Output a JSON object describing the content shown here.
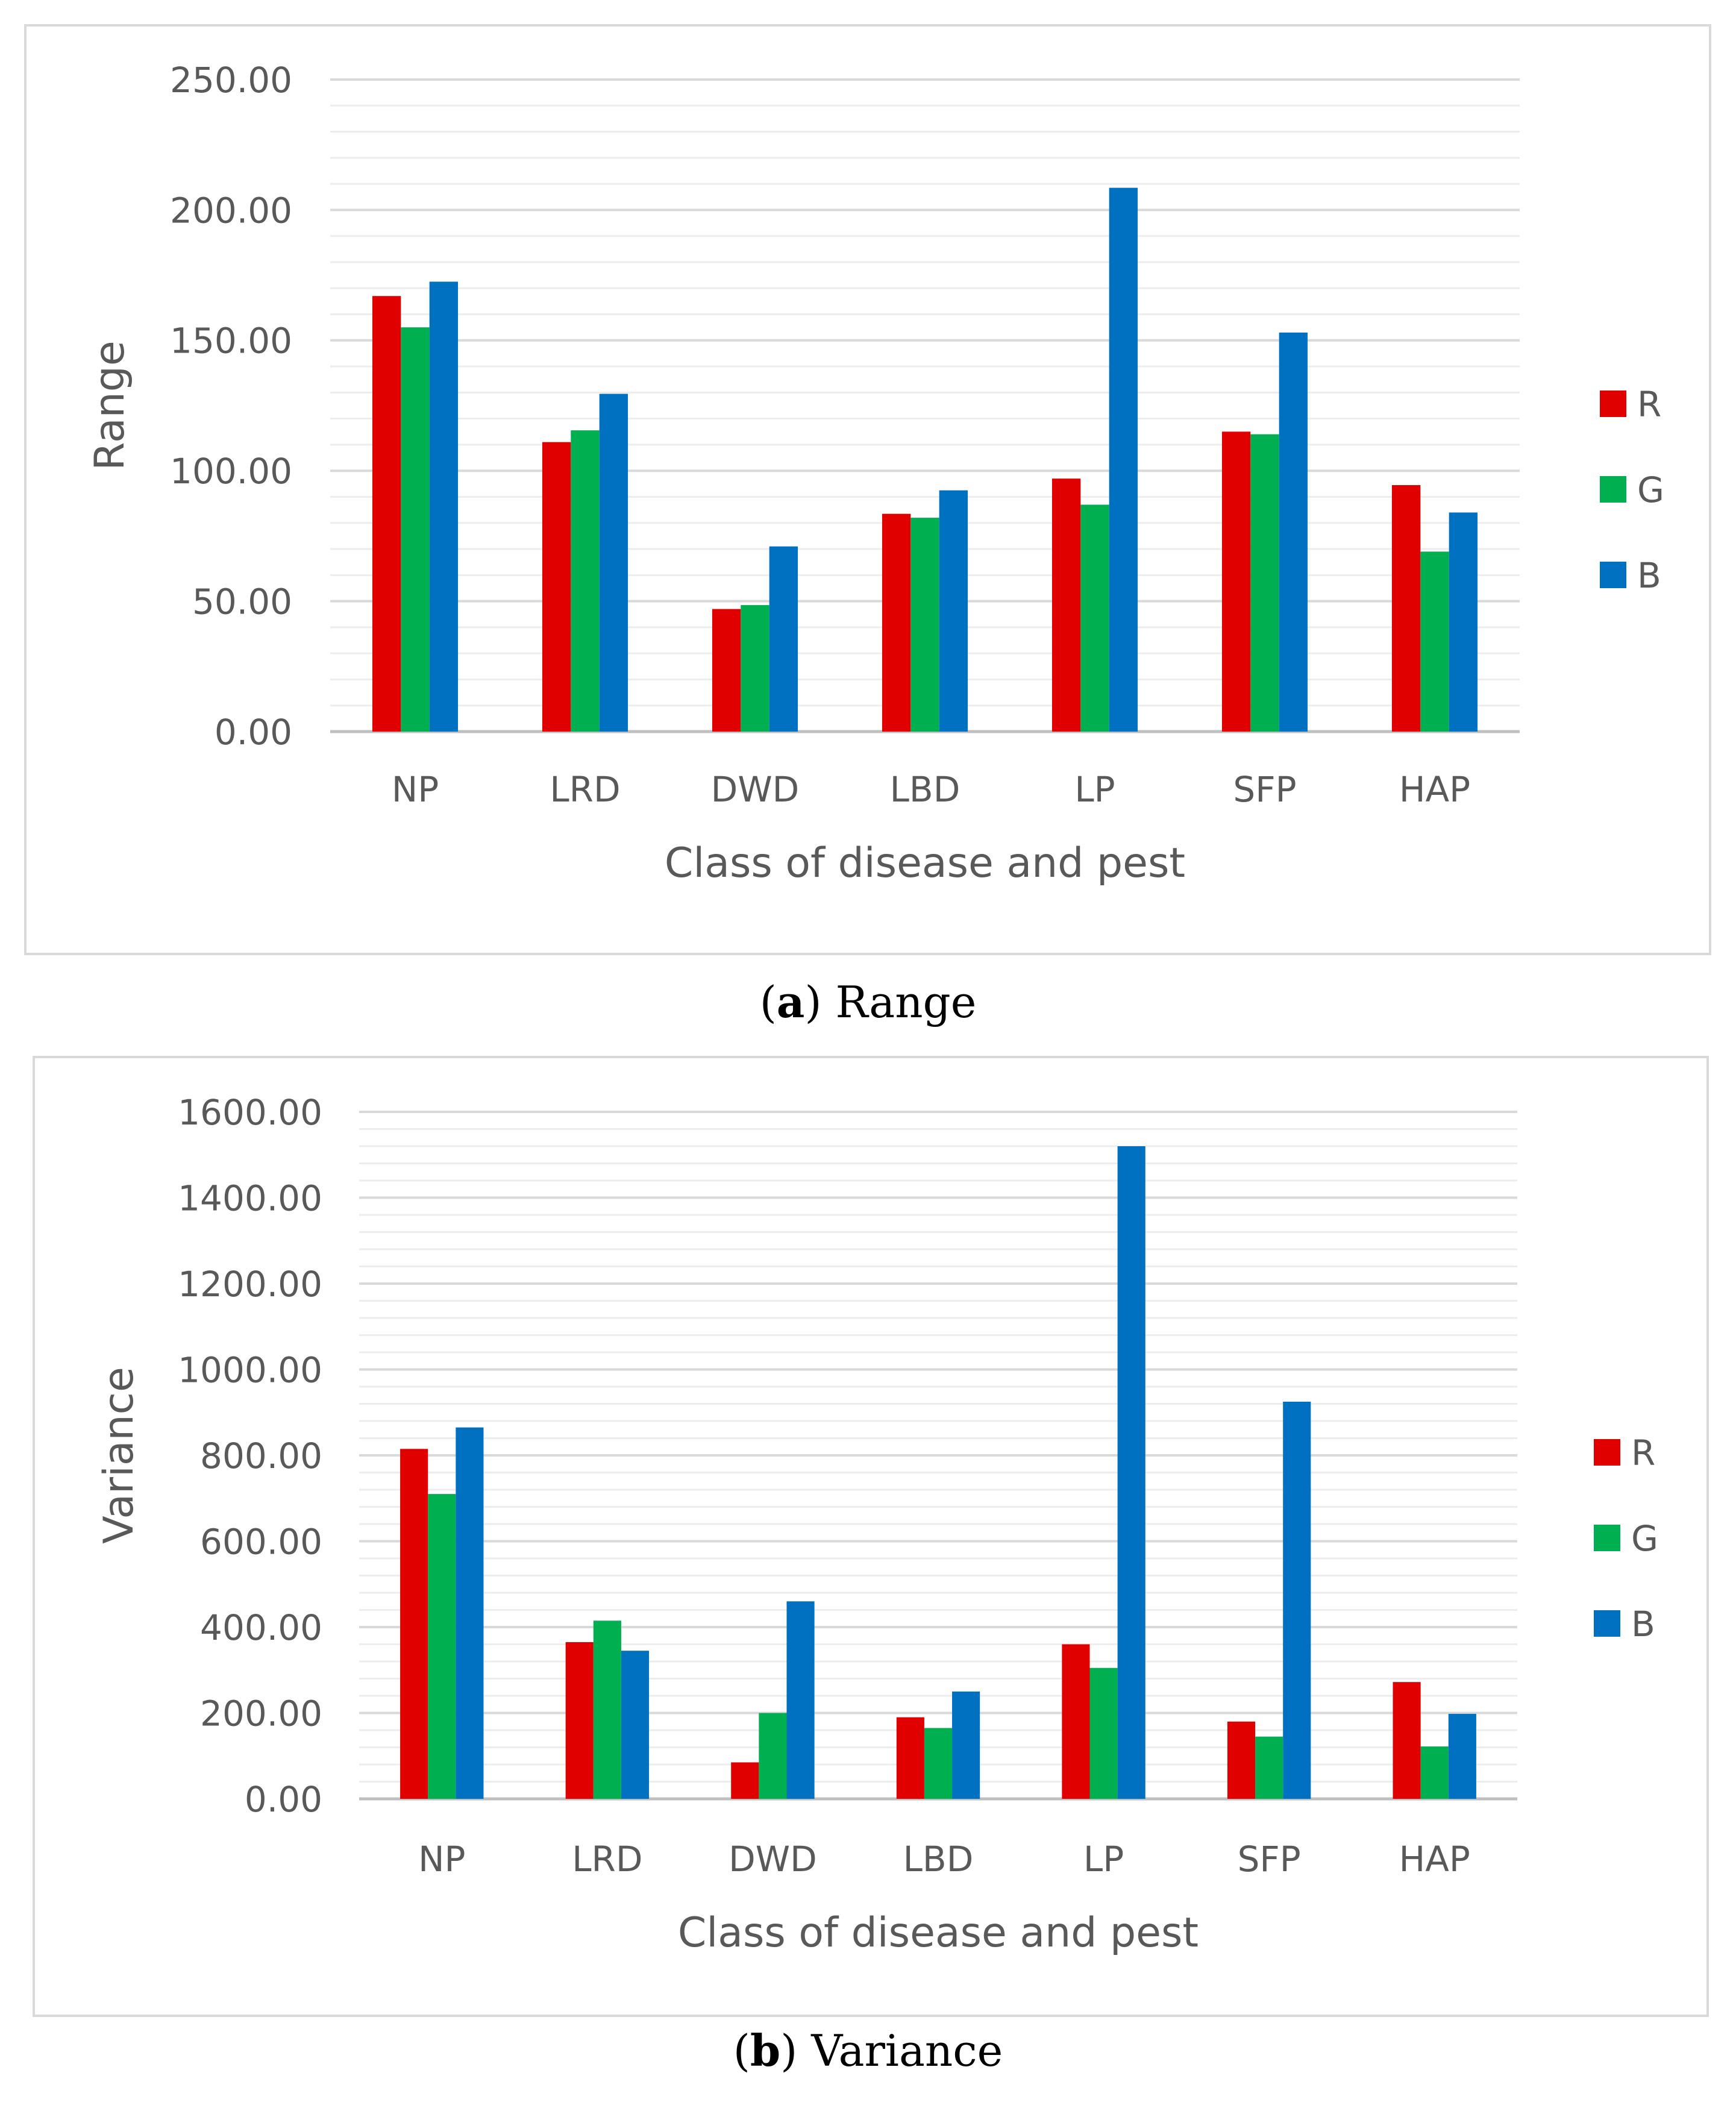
{
  "colors": {
    "R": "#e00000",
    "G": "#00b050",
    "B": "#0070c0",
    "grid": "#d9d9d9",
    "axis_text": "#595959"
  },
  "captions": {
    "a": {
      "letter": "a",
      "text": "Range"
    },
    "b": {
      "letter": "b",
      "text": "Variance"
    }
  },
  "chart_data": [
    {
      "id": "a",
      "type": "bar",
      "title": "",
      "xlabel": "Class of disease and pest",
      "ylabel": "Range",
      "ylim": [
        0,
        250
      ],
      "yticks": [
        0,
        50,
        100,
        150,
        200,
        250
      ],
      "ytick_labels": [
        "0.00",
        "50.00",
        "100.00",
        "150.00",
        "200.00",
        "250.00"
      ],
      "minor_step": 10,
      "grid": true,
      "legend": "right",
      "categories": [
        "NP",
        "LRD",
        "DWD",
        "LBD",
        "LP",
        "SFP",
        "HAP"
      ],
      "series": [
        {
          "name": "R",
          "values": [
            167,
            111,
            47,
            83.5,
            97,
            115,
            94.5
          ]
        },
        {
          "name": "G",
          "values": [
            155,
            115.5,
            48.5,
            82,
            87,
            114,
            69
          ]
        },
        {
          "name": "B",
          "values": [
            172.5,
            129.5,
            71,
            92.5,
            208.5,
            153,
            84
          ]
        }
      ]
    },
    {
      "id": "b",
      "type": "bar",
      "title": "",
      "xlabel": "Class of disease and pest",
      "ylabel": "Variance",
      "ylim": [
        0,
        1600
      ],
      "yticks": [
        0,
        200,
        400,
        600,
        800,
        1000,
        1200,
        1400,
        1600
      ],
      "ytick_labels": [
        "0.00",
        "200.00",
        "400.00",
        "600.00",
        "800.00",
        "1000.00",
        "1200.00",
        "1400.00",
        "1600.00"
      ],
      "minor_step": 40,
      "grid": true,
      "legend": "right",
      "categories": [
        "NP",
        "LRD",
        "DWD",
        "LBD",
        "LP",
        "SFP",
        "HAP"
      ],
      "series": [
        {
          "name": "R",
          "values": [
            815,
            365,
            85,
            190,
            360,
            180,
            272
          ]
        },
        {
          "name": "G",
          "values": [
            710,
            415,
            200,
            165,
            305,
            145,
            122
          ]
        },
        {
          "name": "B",
          "values": [
            865,
            345,
            460,
            250,
            1520,
            925,
            198
          ]
        }
      ]
    }
  ]
}
